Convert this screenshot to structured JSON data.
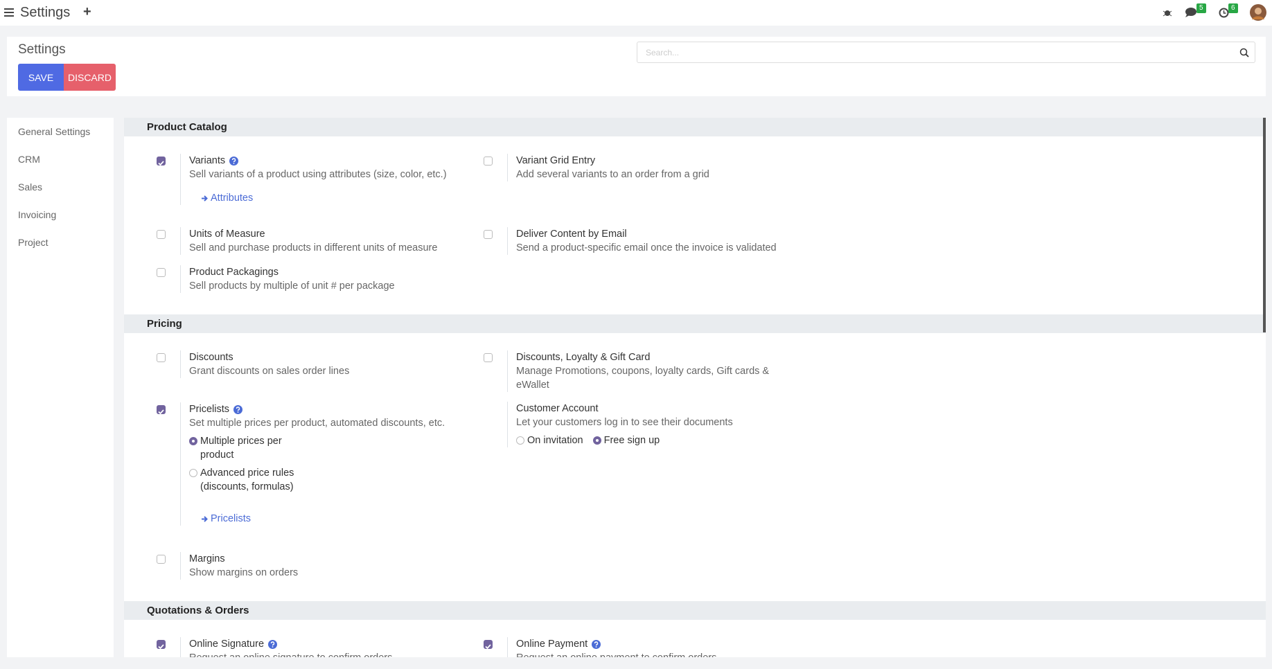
{
  "topbar": {
    "title": "Settings",
    "plus": "+",
    "messages_badge": "5",
    "activities_badge": "6"
  },
  "control_panel": {
    "title": "Settings",
    "save": "SAVE",
    "discard": "DISCARD",
    "search_placeholder": "Search..."
  },
  "sidebar": [
    "General Settings",
    "CRM",
    "Sales",
    "Invoicing",
    "Project"
  ],
  "sections": [
    {
      "title": "Product Catalog",
      "settings": [
        {
          "label": "Variants",
          "help": true,
          "checked": true,
          "description": "Sell variants of a product using attributes (size, color, etc.)",
          "link": "Attributes"
        },
        {
          "label": "Variant Grid Entry",
          "checked": false,
          "description": "Add several variants to an order from a grid"
        },
        {
          "label": "Units of Measure",
          "checked": false,
          "description": "Sell and purchase products in different units of measure"
        },
        {
          "label": "Deliver Content by Email",
          "checked": false,
          "description": "Send a product-specific email once the invoice is validated"
        },
        {
          "label": "Product Packagings",
          "checked": false,
          "description": "Sell products by multiple of unit # per package"
        }
      ]
    },
    {
      "title": "Pricing",
      "settings": [
        {
          "label": "Discounts",
          "checked": false,
          "description": "Grant discounts on sales order lines"
        },
        {
          "label": "Discounts, Loyalty & Gift Card",
          "checked": false,
          "description": "Manage Promotions, coupons, loyalty cards, Gift cards & eWallet"
        },
        {
          "label": "Pricelists",
          "help": true,
          "checked": true,
          "description": "Set multiple prices per product, automated discounts, etc.",
          "options": [
            {
              "label": "Multiple prices per product",
              "selected": true
            },
            {
              "label": "Advanced price rules (discounts, formulas)",
              "selected": false
            }
          ],
          "link": "Pricelists"
        },
        {
          "label": "Customer Account",
          "description": "Let your customers log in to see their documents",
          "options": [
            {
              "label": "On invitation",
              "selected": false
            },
            {
              "label": "Free sign up",
              "selected": true
            }
          ]
        },
        {
          "label": "Margins",
          "checked": false,
          "description": "Show margins on orders"
        }
      ]
    },
    {
      "title": "Quotations & Orders",
      "settings": [
        {
          "label": "Online Signature",
          "help": true,
          "checked": true,
          "description": "Request an online signature to confirm orders"
        },
        {
          "label": "Online Payment",
          "help": true,
          "checked": true,
          "description": "Request an online payment to confirm orders"
        }
      ]
    }
  ]
}
